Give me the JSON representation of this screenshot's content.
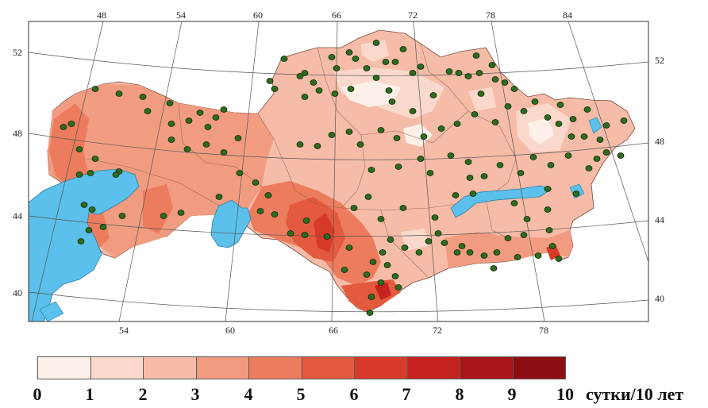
{
  "map": {
    "top_lon_labels": [
      "48",
      "54",
      "60",
      "66",
      "72",
      "78",
      "84"
    ],
    "bottom_lon_labels": [
      "54",
      "60",
      "66",
      "72",
      "78"
    ],
    "left_lat_labels": [
      "52",
      "48",
      "44",
      "40"
    ],
    "right_lat_labels": [
      "52",
      "48",
      "44",
      "40"
    ],
    "colors": {
      "water": "#5bc0eb",
      "frame": "#333333",
      "station": "#2e6b1e"
    }
  },
  "legend": {
    "values": [
      "0",
      "1",
      "2",
      "3",
      "4",
      "5",
      "6",
      "7",
      "8",
      "9",
      "10"
    ],
    "unit": "сутки/10 лет",
    "colors": [
      "#fdf0e9",
      "#fad9cc",
      "#f6bca7",
      "#f19c80",
      "#ec7c5d",
      "#e45a3e",
      "#d83a29",
      "#c52220",
      "#a9141a",
      "#8c0d12"
    ]
  }
}
